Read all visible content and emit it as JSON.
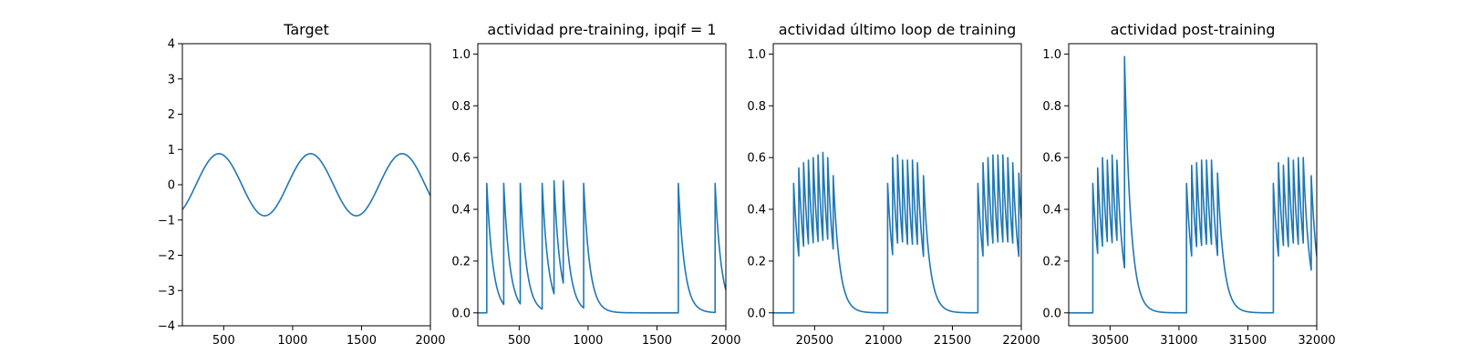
{
  "chart_data": [
    {
      "type": "line",
      "title": "Target",
      "xlim": [
        200,
        2000
      ],
      "ylim": [
        -4,
        4
      ],
      "xticks": [
        500,
        1000,
        1500,
        2000
      ],
      "yticks": [
        -4,
        -3,
        -2,
        -1,
        0,
        1,
        2,
        3,
        4
      ],
      "series": [
        {
          "kind": "sine",
          "amplitude": 0.88,
          "period": 665,
          "peak_x": 465,
          "color": "#1f77b4"
        }
      ]
    },
    {
      "type": "line",
      "title": "actividad pre-training, ipqif = 1",
      "xlim": [
        200,
        2000
      ],
      "ylim": [
        -0.05,
        1.04
      ],
      "xticks": [
        500,
        1000,
        1500,
        2000
      ],
      "yticks": [
        0.0,
        0.2,
        0.4,
        0.6,
        0.8,
        1.0
      ],
      "baseline": 0.0,
      "decay": 45,
      "series": [
        {
          "kind": "spikes",
          "color": "#1f77b4",
          "spikes": [
            [
              265,
              0.5
            ],
            [
              388,
              0.5
            ],
            [
              508,
              0.5
            ],
            [
              667,
              0.5
            ],
            [
              753,
              0.51
            ],
            [
              820,
              0.51
            ],
            [
              968,
              0.5
            ],
            [
              1655,
              0.5
            ],
            [
              1922,
              0.5
            ]
          ]
        }
      ]
    },
    {
      "type": "line",
      "title": "actividad último loop de training",
      "xlim": [
        20200,
        22000
      ],
      "ylim": [
        -0.05,
        1.04
      ],
      "xticks": [
        20500,
        21000,
        21500,
        22000
      ],
      "yticks": [
        0.0,
        0.2,
        0.4,
        0.6,
        0.8,
        1.0
      ],
      "baseline": 0.0,
      "decay": 45,
      "series": [
        {
          "kind": "spikes",
          "color": "#1f77b4",
          "spikes": [
            [
              20348,
              0.5
            ],
            [
              20385,
              0.56
            ],
            [
              20420,
              0.58
            ],
            [
              20455,
              0.59
            ],
            [
              20490,
              0.6
            ],
            [
              20525,
              0.61
            ],
            [
              20560,
              0.62
            ],
            [
              20595,
              0.6
            ],
            [
              20635,
              0.53
            ],
            [
              21030,
              0.5
            ],
            [
              21066,
              0.6
            ],
            [
              21102,
              0.61
            ],
            [
              21138,
              0.59
            ],
            [
              21174,
              0.59
            ],
            [
              21210,
              0.59
            ],
            [
              21246,
              0.58
            ],
            [
              21290,
              0.53
            ],
            [
              21685,
              0.5
            ],
            [
              21722,
              0.58
            ],
            [
              21758,
              0.6
            ],
            [
              21794,
              0.61
            ],
            [
              21830,
              0.61
            ],
            [
              21866,
              0.61
            ],
            [
              21902,
              0.6
            ],
            [
              21938,
              0.58
            ],
            [
              21982,
              0.54
            ]
          ]
        }
      ]
    },
    {
      "type": "line",
      "title": "actividad post-training",
      "xlim": [
        30200,
        32000
      ],
      "ylim": [
        -0.05,
        1.04
      ],
      "xticks": [
        30500,
        31000,
        31500,
        32000
      ],
      "yticks": [
        0.0,
        0.2,
        0.4,
        0.6,
        0.8,
        1.0
      ],
      "baseline": 0.0,
      "decay": 45,
      "series": [
        {
          "kind": "spikes",
          "color": "#1f77b4",
          "spikes": [
            [
              30375,
              0.5
            ],
            [
              30410,
              0.56
            ],
            [
              30445,
              0.6
            ],
            [
              30480,
              0.59
            ],
            [
              30515,
              0.61
            ],
            [
              30550,
              0.59
            ],
            [
              30605,
              0.99
            ],
            [
              31055,
              0.5
            ],
            [
              31092,
              0.57
            ],
            [
              31128,
              0.58
            ],
            [
              31164,
              0.59
            ],
            [
              31200,
              0.59
            ],
            [
              31236,
              0.59
            ],
            [
              31280,
              0.54
            ],
            [
              31685,
              0.5
            ],
            [
              31722,
              0.58
            ],
            [
              31758,
              0.57
            ],
            [
              31794,
              0.6
            ],
            [
              31830,
              0.59
            ],
            [
              31866,
              0.6
            ],
            [
              31902,
              0.6
            ],
            [
              31960,
              0.53
            ]
          ]
        }
      ]
    }
  ]
}
